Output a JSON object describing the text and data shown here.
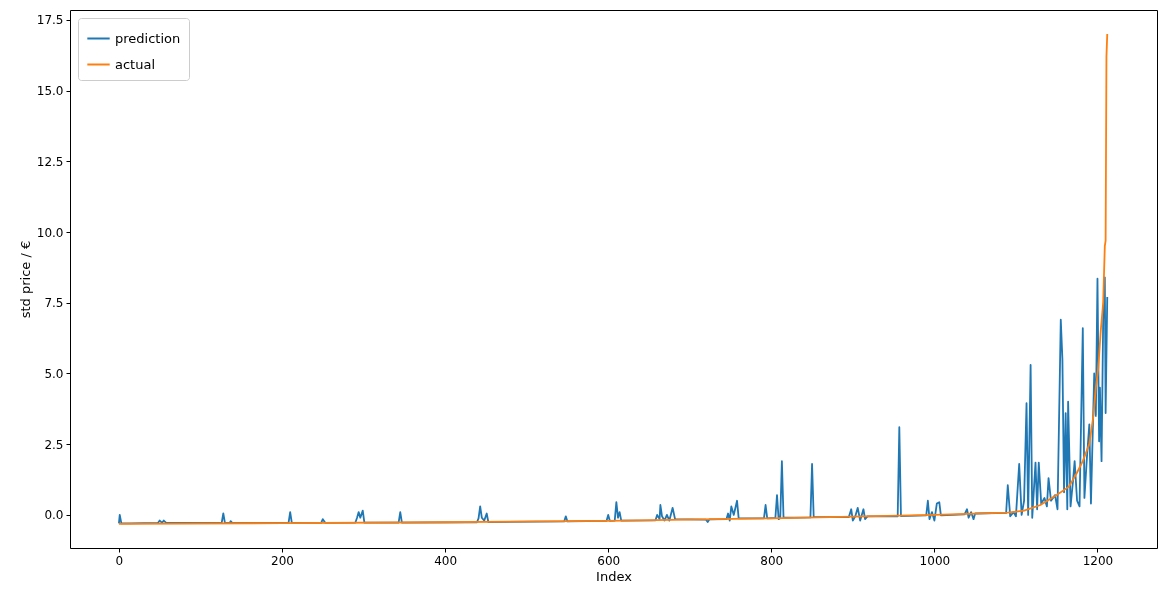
{
  "chart_data": {
    "type": "line",
    "xlabel": "Index",
    "ylabel": "std price / €",
    "xlim": [
      -60,
      1273
    ],
    "ylim": [
      -1.17,
      17.85
    ],
    "xticks": [
      0,
      200,
      400,
      600,
      800,
      1000,
      1200
    ],
    "yticks": [
      {
        "value": 0,
        "label": "0.0"
      },
      2.5,
      {
        "value": 5,
        "label": "5.0"
      },
      7.5,
      {
        "value": 10,
        "label": "10.0"
      },
      12.5,
      {
        "value": 15,
        "label": "15.0"
      },
      17.5
    ],
    "legend": "top left",
    "grid": false,
    "marker": "none",
    "line_style": "solid",
    "series": [
      {
        "name": "prediction",
        "color": "#1f77b4",
        "x": [
          0,
          1,
          3,
          13,
          48,
          50,
          53,
          55,
          58,
          126,
          128,
          130,
          136,
          137,
          139,
          208,
          210,
          212,
          248,
          250,
          253,
          290,
          292,
          294,
          296,
          299,
          301,
          343,
          345,
          347,
          439,
          441,
          443,
          445,
          448,
          451,
          453,
          546,
          548,
          550,
          598,
          600,
          602,
          608,
          610,
          612,
          614,
          616,
          658,
          660,
          663,
          664,
          666,
          669,
          672,
          675,
          679,
          682,
          720,
          722,
          724,
          745,
          747,
          749,
          751,
          754,
          758,
          760,
          791,
          793,
          795,
          805,
          807,
          809,
          811,
          813,
          815,
          848,
          850,
          852,
          895,
          898,
          900,
          903,
          906,
          909,
          913,
          915,
          918,
          955,
          957,
          959,
          990,
          992,
          994,
          997,
          1000,
          1003,
          1006,
          1008,
          1037,
          1040,
          1042,
          1045,
          1048,
          1050,
          1088,
          1090,
          1093,
          1097,
          1100,
          1104,
          1107,
          1110,
          1113,
          1115,
          1118,
          1120,
          1124,
          1126,
          1128,
          1131,
          1135,
          1138,
          1140,
          1143,
          1148,
          1151,
          1155,
          1157,
          1159,
          1161,
          1163,
          1164,
          1167,
          1170,
          1172,
          1175,
          1178,
          1182,
          1184,
          1187,
          1190,
          1192,
          1196,
          1198,
          1200,
          1202,
          1203,
          1205,
          1207,
          1209,
          1210,
          1212
        ],
        "values": [
          -0.3,
          0.0,
          -0.3,
          -0.3,
          -0.28,
          -0.2,
          -0.28,
          -0.2,
          -0.28,
          -0.28,
          0.05,
          -0.28,
          -0.28,
          -0.22,
          -0.28,
          -0.28,
          0.1,
          -0.28,
          -0.28,
          -0.15,
          -0.28,
          -0.27,
          -0.1,
          0.1,
          -0.1,
          0.15,
          -0.27,
          -0.27,
          0.1,
          -0.27,
          -0.26,
          -0.12,
          0.3,
          -0.1,
          -0.2,
          0.05,
          -0.25,
          -0.23,
          -0.05,
          -0.23,
          -0.21,
          0.0,
          -0.21,
          -0.2,
          0.45,
          -0.1,
          0.1,
          -0.2,
          -0.19,
          0.0,
          -0.15,
          0.35,
          -0.05,
          -0.2,
          0.0,
          -0.2,
          0.25,
          -0.15,
          -0.17,
          -0.25,
          -0.16,
          -0.15,
          0.05,
          -0.2,
          0.3,
          0.0,
          0.5,
          -0.12,
          -0.12,
          0.35,
          -0.12,
          -0.11,
          0.7,
          -0.15,
          -0.11,
          1.9,
          -0.1,
          -0.09,
          1.8,
          -0.08,
          -0.08,
          0.2,
          -0.2,
          -0.05,
          0.25,
          -0.2,
          0.2,
          -0.15,
          -0.05,
          -0.05,
          3.1,
          -0.04,
          -0.02,
          0.5,
          -0.15,
          0.1,
          -0.2,
          0.4,
          0.45,
          -0.02,
          0.02,
          0.2,
          -0.1,
          0.1,
          -0.15,
          0.05,
          0.07,
          1.05,
          -0.05,
          0.1,
          -0.05,
          1.8,
          0.0,
          0.5,
          3.95,
          0.0,
          5.3,
          -0.1,
          1.85,
          0.2,
          1.85,
          0.4,
          0.6,
          0.3,
          1.3,
          0.5,
          0.7,
          0.2,
          6.9,
          5.5,
          0.8,
          3.6,
          0.2,
          4.0,
          0.3,
          1.2,
          1.9,
          0.5,
          0.3,
          6.6,
          0.6,
          2.0,
          3.2,
          0.4,
          5.0,
          3.5,
          8.35,
          2.6,
          4.5,
          1.9,
          6.9,
          8.4,
          3.6,
          7.7
        ]
      },
      {
        "name": "actual",
        "color": "#ff7f0e",
        "x": [
          0,
          200,
          400,
          600,
          800,
          1000,
          1090,
          1110,
          1130,
          1150,
          1165,
          1175,
          1182,
          1190,
          1195,
          1198,
          1201,
          1204,
          1207,
          1209,
          1210,
          1211,
          1212
        ],
        "values": [
          -0.32,
          -0.29,
          -0.26,
          -0.21,
          -0.12,
          0.0,
          0.08,
          0.15,
          0.35,
          0.7,
          1.0,
          1.5,
          1.9,
          2.5,
          3.5,
          4.5,
          5.2,
          6.5,
          7.5,
          9.5,
          9.7,
          16.2,
          17.0
        ]
      }
    ]
  }
}
